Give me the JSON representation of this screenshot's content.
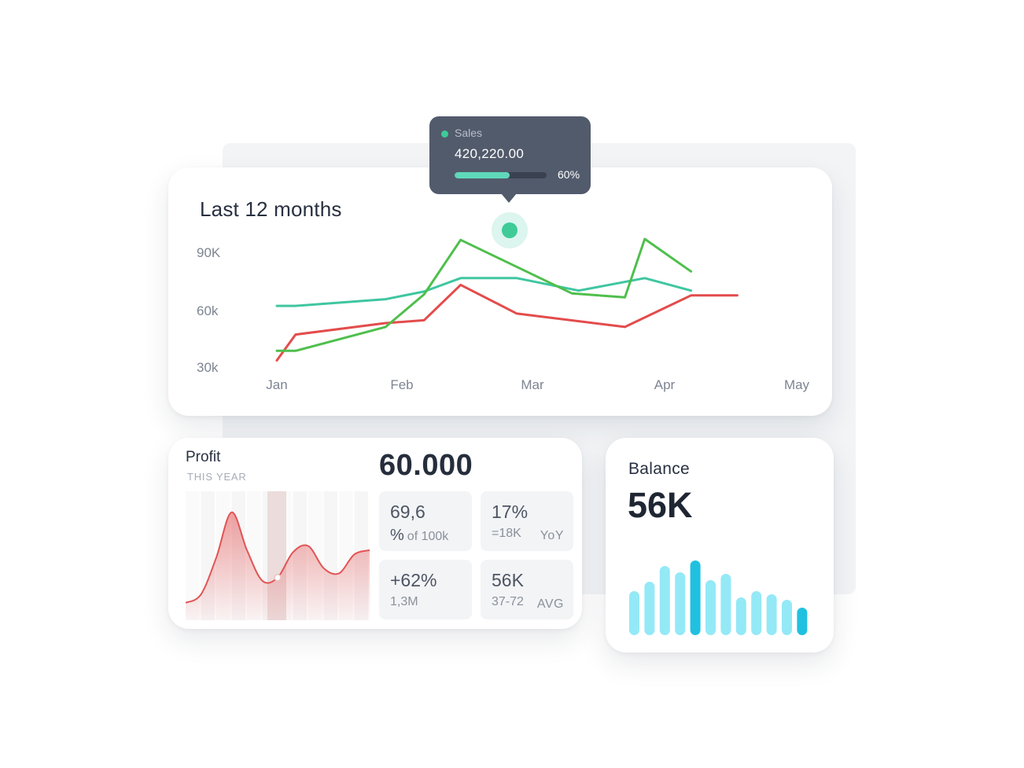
{
  "main_chart": {
    "title": "Last 12 months",
    "tooltip": {
      "series": "Sales",
      "value": "420,220.00",
      "percent_label": "60%",
      "percent": 60,
      "dot_color": "#3ecb98"
    }
  },
  "profit": {
    "title": "Profit",
    "subtitle": "THIS YEAR",
    "big_value": "60.000",
    "stats": [
      {
        "main": "69,6",
        "sub_symbol": "%",
        "sub": "of 100k",
        "tag": ""
      },
      {
        "main": "17%",
        "sub_symbol": "",
        "sub": "=18K",
        "tag": "YoY"
      },
      {
        "main": "+62%",
        "sub_symbol": "",
        "sub": "1,3M",
        "tag": ""
      },
      {
        "main": "56K",
        "sub_symbol": "",
        "sub": "37-72",
        "tag": "AVG"
      }
    ]
  },
  "balance": {
    "title": "Balance",
    "value": "56K"
  },
  "chart_data": [
    {
      "type": "line",
      "title": "Last 12 months",
      "categories": [
        "Jan",
        "Feb",
        "Mar",
        "Apr",
        "May"
      ],
      "y_ticks": [
        "90K",
        "60k",
        "30k"
      ],
      "ylim": [
        30000,
        90000
      ],
      "x": [
        0,
        0.15,
        0.5,
        0.87,
        1.0,
        1.17,
        1.45,
        1.5,
        1.88,
        2.3,
        2.35,
        2.7,
        2.85,
        3.2,
        3.55
      ],
      "series": [
        {
          "color": "#3fc6a0",
          "values": [
            62000,
            62000,
            null,
            65500,
            null,
            69500,
            76500,
            null,
            76500,
            null,
            70000,
            null,
            76500,
            70000,
            null
          ]
        },
        {
          "color": "#e34c4c",
          "values": [
            33500,
            47000,
            null,
            53000,
            null,
            54500,
            73000,
            null,
            58000,
            null,
            null,
            51000,
            null,
            67500,
            67500
          ]
        },
        {
          "color": "#4fbf4c",
          "values": [
            38500,
            38500,
            null,
            51000,
            null,
            68000,
            96500,
            null,
            null,
            68500,
            null,
            66500,
            97000,
            80000,
            null
          ]
        }
      ],
      "grid": false
    },
    {
      "type": "area",
      "title": "Profit",
      "values": [
        0.12,
        0.2,
        0.55,
        0.98,
        0.62,
        0.33,
        0.36,
        0.6,
        0.66,
        0.45,
        0.4,
        0.58,
        0.62
      ],
      "highlight_index": 6,
      "color": "#e25454",
      "grid": false
    },
    {
      "type": "bar",
      "title": "Balance",
      "values": [
        56,
        68,
        88,
        80,
        95,
        70,
        78,
        48,
        56,
        52,
        45,
        35
      ],
      "highlight": [
        false,
        false,
        false,
        false,
        true,
        false,
        false,
        false,
        false,
        false,
        false,
        true
      ],
      "color": "#94e9f6",
      "highlight_color": "#20c1e0"
    }
  ]
}
